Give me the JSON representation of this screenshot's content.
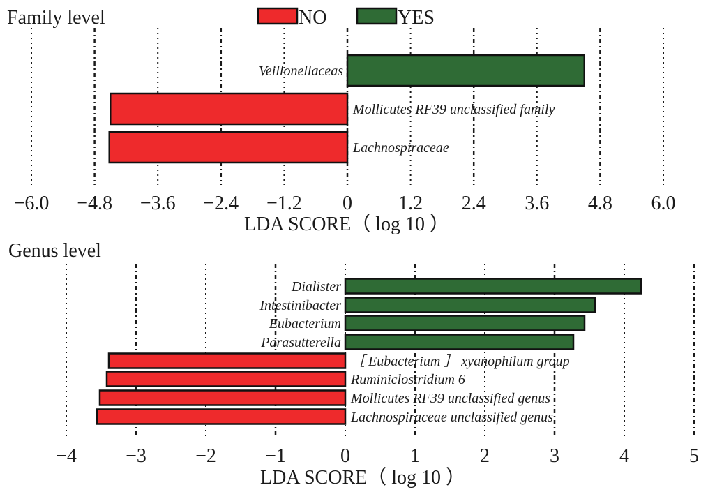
{
  "legend": {
    "no_label": "NO",
    "yes_label": "YES",
    "no_color": "#ee2a2c",
    "yes_color": "#2f6b35"
  },
  "chart_data": [
    {
      "type": "bar",
      "orientation": "horizontal",
      "title": "Family level",
      "xlabel": "LDA SCORE（ log 10 ）",
      "xlim": [
        -6.0,
        6.0
      ],
      "xticks": [
        "−6.0",
        "−4.8",
        "−3.6",
        "−2.4",
        "−1.2",
        "0",
        "1.2",
        "2.4",
        "3.6",
        "4.8",
        "6.0"
      ],
      "xtick_values": [
        -6.0,
        -4.8,
        -3.6,
        -2.4,
        -1.2,
        0,
        1.2,
        2.4,
        3.6,
        4.8,
        6.0
      ],
      "grid": true,
      "legend_position": "top-center",
      "categories": [
        "Veillonellaceas",
        "Mollicutes RF39 unclassified family",
        "Lachnospiraceae"
      ],
      "values": [
        4.5,
        -4.5,
        -4.52
      ],
      "groups": [
        "YES",
        "NO",
        "NO"
      ]
    },
    {
      "type": "bar",
      "orientation": "horizontal",
      "title": "Genus level",
      "xlabel": "LDA SCORE（ log 10 ）",
      "xlim": [
        -4,
        5
      ],
      "xticks": [
        "−4",
        "−3",
        "−2",
        "−1",
        "0",
        "1",
        "2",
        "3",
        "4",
        "5"
      ],
      "xtick_values": [
        -4,
        -3,
        -2,
        -1,
        0,
        1,
        2,
        3,
        4,
        5
      ],
      "grid": true,
      "categories": [
        "Dialister",
        "Intestinibacter",
        "Eubacterium",
        "Parasutterella",
        "［ Eubacterium ］ xyanophilum group",
        "Ruminiclostridium 6",
        "Mollicutes RF39 unclassified genus",
        "Lachnospiraceae unclassified genus"
      ],
      "values": [
        4.24,
        3.58,
        3.43,
        3.27,
        -3.39,
        -3.42,
        -3.52,
        -3.56
      ],
      "groups": [
        "YES",
        "YES",
        "YES",
        "YES",
        "NO",
        "NO",
        "NO",
        "NO"
      ]
    }
  ]
}
